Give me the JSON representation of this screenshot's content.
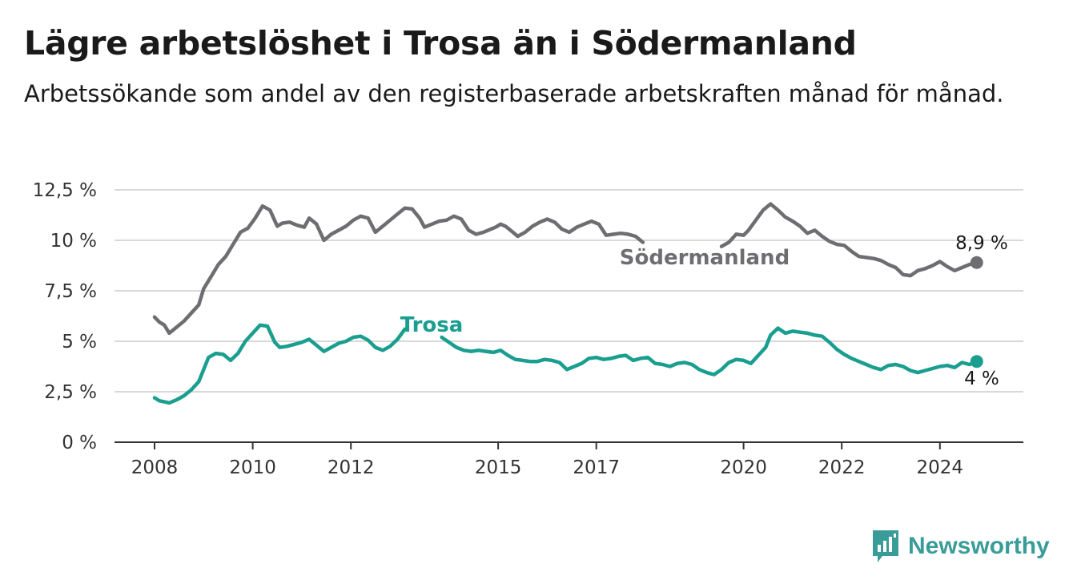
{
  "title": "Lägre arbetslöshet i Trosa än i Södermanland",
  "subtitle": "Arbetssökande som andel av den registerbaserade arbetskraften månad för månad.",
  "brand": {
    "name": "Newsworthy",
    "color": "#3a9c98",
    "icon": "bar-chart-speech-icon"
  },
  "chart_data": {
    "type": "line",
    "title": "Lägre arbetslöshet i Trosa än i Södermanland",
    "subtitle": "Arbetssökande som andel av den registerbaserade arbetskraften månad för månad.",
    "ylim": [
      0,
      12.5
    ],
    "y_ticks": [
      0,
      2.5,
      5,
      7.5,
      10,
      12.5
    ],
    "y_tick_labels": [
      "0 %",
      "2,5 %",
      "5 %",
      "7,5 %",
      "10 %",
      "12,5 %"
    ],
    "x_ticks": [
      2008,
      2010,
      2012,
      2015,
      2017,
      2020,
      2022,
      2024
    ],
    "x_tick_labels": [
      "2008",
      "2010",
      "2012",
      "2015",
      "2017",
      "2020",
      "2022",
      "2024"
    ],
    "grid": true,
    "series": [
      {
        "name": "Södermanland",
        "color": "#6e6d72",
        "end_label": "8,9 %",
        "segments": [
          [
            [
              2008.0,
              6.2
            ],
            [
              2008.1,
              5.95
            ],
            [
              2008.2,
              5.8
            ],
            [
              2008.3,
              5.4
            ],
            [
              2008.45,
              5.7
            ],
            [
              2008.6,
              6.0
            ],
            [
              2008.75,
              6.4
            ],
            [
              2008.9,
              6.8
            ],
            [
              2009.0,
              7.6
            ],
            [
              2009.15,
              8.2
            ],
            [
              2009.3,
              8.8
            ],
            [
              2009.45,
              9.2
            ],
            [
              2009.6,
              9.8
            ],
            [
              2009.75,
              10.4
            ],
            [
              2009.9,
              10.6
            ],
            [
              2010.05,
              11.1
            ],
            [
              2010.2,
              11.7
            ],
            [
              2010.35,
              11.5
            ],
            [
              2010.5,
              10.7
            ],
            [
              2010.6,
              10.85
            ],
            [
              2010.75,
              10.9
            ],
            [
              2010.9,
              10.75
            ],
            [
              2011.05,
              10.65
            ],
            [
              2011.15,
              11.1
            ],
            [
              2011.3,
              10.8
            ],
            [
              2011.45,
              10.0
            ],
            [
              2011.6,
              10.3
            ],
            [
              2011.75,
              10.5
            ],
            [
              2011.9,
              10.7
            ],
            [
              2012.05,
              11.0
            ],
            [
              2012.2,
              11.2
            ],
            [
              2012.35,
              11.1
            ],
            [
              2012.5,
              10.4
            ],
            [
              2012.65,
              10.7
            ],
            [
              2012.8,
              11.0
            ],
            [
              2012.95,
              11.3
            ],
            [
              2013.1,
              11.6
            ],
            [
              2013.25,
              11.55
            ],
            [
              2013.4,
              11.1
            ],
            [
              2013.5,
              10.65
            ],
            [
              2013.65,
              10.8
            ],
            [
              2013.8,
              10.95
            ],
            [
              2013.95,
              11.0
            ],
            [
              2014.1,
              11.2
            ],
            [
              2014.25,
              11.05
            ],
            [
              2014.4,
              10.5
            ],
            [
              2014.55,
              10.3
            ],
            [
              2014.7,
              10.4
            ],
            [
              2014.85,
              10.55
            ],
            [
              2014.95,
              10.65
            ],
            [
              2015.05,
              10.8
            ],
            [
              2015.15,
              10.7
            ],
            [
              2015.3,
              10.4
            ],
            [
              2015.4,
              10.2
            ],
            [
              2015.55,
              10.4
            ],
            [
              2015.7,
              10.7
            ],
            [
              2015.85,
              10.9
            ],
            [
              2016.0,
              11.05
            ],
            [
              2016.15,
              10.9
            ],
            [
              2016.3,
              10.55
            ],
            [
              2016.45,
              10.4
            ],
            [
              2016.6,
              10.65
            ],
            [
              2016.75,
              10.8
            ],
            [
              2016.9,
              10.95
            ],
            [
              2017.05,
              10.8
            ],
            [
              2017.2,
              10.25
            ],
            [
              2017.35,
              10.3
            ],
            [
              2017.5,
              10.35
            ],
            [
              2017.65,
              10.3
            ],
            [
              2017.8,
              10.2
            ],
            [
              2017.95,
              9.9
            ]
          ],
          [
            [
              2019.55,
              9.7
            ],
            [
              2019.7,
              9.9
            ],
            [
              2019.85,
              10.3
            ],
            [
              2020.0,
              10.25
            ],
            [
              2020.1,
              10.5
            ],
            [
              2020.25,
              11.0
            ],
            [
              2020.4,
              11.5
            ],
            [
              2020.55,
              11.8
            ],
            [
              2020.7,
              11.5
            ],
            [
              2020.85,
              11.15
            ],
            [
              2021.0,
              10.95
            ],
            [
              2021.15,
              10.7
            ],
            [
              2021.3,
              10.35
            ],
            [
              2021.45,
              10.5
            ],
            [
              2021.6,
              10.2
            ],
            [
              2021.75,
              9.95
            ],
            [
              2021.9,
              9.8
            ],
            [
              2022.05,
              9.75
            ],
            [
              2022.2,
              9.45
            ],
            [
              2022.35,
              9.2
            ],
            [
              2022.5,
              9.15
            ],
            [
              2022.65,
              9.1
            ],
            [
              2022.8,
              9.0
            ],
            [
              2022.95,
              8.8
            ],
            [
              2023.1,
              8.65
            ],
            [
              2023.25,
              8.3
            ],
            [
              2023.4,
              8.25
            ],
            [
              2023.55,
              8.5
            ],
            [
              2023.7,
              8.6
            ],
            [
              2023.85,
              8.75
            ],
            [
              2024.0,
              8.95
            ],
            [
              2024.15,
              8.7
            ],
            [
              2024.3,
              8.5
            ],
            [
              2024.45,
              8.65
            ],
            [
              2024.6,
              8.8
            ],
            [
              2024.75,
              8.9
            ]
          ]
        ]
      },
      {
        "name": "Trosa",
        "color": "#1a9e8f",
        "end_label": "4 %",
        "segments": [
          [
            [
              2008.0,
              2.2
            ],
            [
              2008.1,
              2.05
            ],
            [
              2008.2,
              2.0
            ],
            [
              2008.3,
              1.95
            ],
            [
              2008.45,
              2.1
            ],
            [
              2008.6,
              2.3
            ],
            [
              2008.75,
              2.6
            ],
            [
              2008.9,
              3.0
            ],
            [
              2009.0,
              3.6
            ],
            [
              2009.1,
              4.2
            ],
            [
              2009.25,
              4.4
            ],
            [
              2009.4,
              4.35
            ],
            [
              2009.55,
              4.05
            ],
            [
              2009.7,
              4.4
            ],
            [
              2009.85,
              5.0
            ],
            [
              2010.0,
              5.4
            ],
            [
              2010.15,
              5.8
            ],
            [
              2010.3,
              5.75
            ],
            [
              2010.45,
              4.95
            ],
            [
              2010.55,
              4.7
            ],
            [
              2010.7,
              4.75
            ],
            [
              2010.85,
              4.85
            ],
            [
              2011.0,
              4.95
            ],
            [
              2011.15,
              5.1
            ],
            [
              2011.3,
              4.8
            ],
            [
              2011.45,
              4.5
            ],
            [
              2011.6,
              4.7
            ],
            [
              2011.75,
              4.9
            ],
            [
              2011.9,
              5.0
            ],
            [
              2012.05,
              5.2
            ],
            [
              2012.2,
              5.25
            ],
            [
              2012.35,
              5.05
            ],
            [
              2012.5,
              4.7
            ],
            [
              2012.65,
              4.55
            ],
            [
              2012.8,
              4.75
            ],
            [
              2012.95,
              5.1
            ],
            [
              2013.1,
              5.6
            ]
          ],
          [
            [
              2013.85,
              5.2
            ],
            [
              2014.0,
              4.95
            ],
            [
              2014.15,
              4.7
            ],
            [
              2014.3,
              4.55
            ],
            [
              2014.45,
              4.5
            ],
            [
              2014.6,
              4.55
            ],
            [
              2014.75,
              4.5
            ],
            [
              2014.9,
              4.45
            ],
            [
              2015.05,
              4.55
            ],
            [
              2015.2,
              4.3
            ],
            [
              2015.35,
              4.1
            ],
            [
              2015.5,
              4.05
            ],
            [
              2015.65,
              4.0
            ],
            [
              2015.8,
              4.0
            ],
            [
              2015.95,
              4.1
            ],
            [
              2016.1,
              4.05
            ],
            [
              2016.25,
              3.95
            ],
            [
              2016.4,
              3.6
            ],
            [
              2016.55,
              3.75
            ],
            [
              2016.7,
              3.9
            ],
            [
              2016.85,
              4.15
            ],
            [
              2017.0,
              4.2
            ],
            [
              2017.15,
              4.1
            ],
            [
              2017.3,
              4.15
            ],
            [
              2017.45,
              4.25
            ],
            [
              2017.6,
              4.3
            ],
            [
              2017.75,
              4.05
            ],
            [
              2017.9,
              4.15
            ],
            [
              2018.05,
              4.2
            ],
            [
              2018.2,
              3.9
            ],
            [
              2018.35,
              3.85
            ],
            [
              2018.5,
              3.75
            ],
            [
              2018.65,
              3.9
            ],
            [
              2018.8,
              3.95
            ],
            [
              2018.95,
              3.85
            ],
            [
              2019.1,
              3.6
            ],
            [
              2019.25,
              3.45
            ],
            [
              2019.4,
              3.35
            ],
            [
              2019.55,
              3.6
            ],
            [
              2019.7,
              3.95
            ],
            [
              2019.85,
              4.1
            ],
            [
              2020.0,
              4.05
            ],
            [
              2020.15,
              3.9
            ],
            [
              2020.3,
              4.3
            ],
            [
              2020.45,
              4.7
            ],
            [
              2020.55,
              5.3
            ],
            [
              2020.7,
              5.65
            ],
            [
              2020.85,
              5.4
            ],
            [
              2021.0,
              5.5
            ],
            [
              2021.15,
              5.45
            ],
            [
              2021.3,
              5.4
            ],
            [
              2021.45,
              5.3
            ],
            [
              2021.6,
              5.25
            ],
            [
              2021.75,
              4.95
            ],
            [
              2021.9,
              4.6
            ],
            [
              2022.05,
              4.35
            ],
            [
              2022.2,
              4.15
            ],
            [
              2022.35,
              4.0
            ],
            [
              2022.5,
              3.85
            ],
            [
              2022.65,
              3.7
            ],
            [
              2022.8,
              3.6
            ],
            [
              2022.95,
              3.8
            ],
            [
              2023.1,
              3.85
            ],
            [
              2023.25,
              3.75
            ],
            [
              2023.4,
              3.55
            ],
            [
              2023.55,
              3.45
            ],
            [
              2023.7,
              3.55
            ],
            [
              2023.85,
              3.65
            ],
            [
              2024.0,
              3.75
            ],
            [
              2024.15,
              3.8
            ],
            [
              2024.3,
              3.7
            ],
            [
              2024.45,
              3.95
            ],
            [
              2024.6,
              3.85
            ],
            [
              2024.75,
              4.0
            ]
          ]
        ]
      }
    ]
  }
}
